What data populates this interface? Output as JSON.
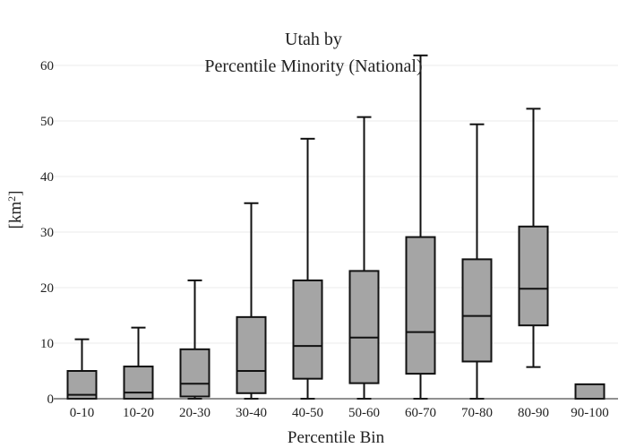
{
  "chart_data": {
    "type": "box",
    "title_lines": [
      "Utah  by",
      "Percentile Minority (National)"
    ],
    "xlabel": "Percentile Bin",
    "ylabel": "[km",
    "ylabel_sup": "2",
    "ylabel_close": "]",
    "ylim": [
      0,
      62
    ],
    "yticks": [
      0,
      10,
      20,
      30,
      40,
      50,
      60
    ],
    "grid": true,
    "categories": [
      "0-10",
      "10-20",
      "20-30",
      "30-40",
      "40-50",
      "50-60",
      "60-70",
      "70-80",
      "80-90",
      "90-100"
    ],
    "boxes": [
      {
        "min": 0,
        "q1": 0,
        "median": 0.7,
        "q3": 5.0,
        "max": 10.7
      },
      {
        "min": 0,
        "q1": 0,
        "median": 1.1,
        "q3": 5.8,
        "max": 12.8
      },
      {
        "min": 0,
        "q1": 0.4,
        "median": 2.7,
        "q3": 8.9,
        "max": 21.3
      },
      {
        "min": 0,
        "q1": 1.0,
        "median": 5.0,
        "q3": 14.7,
        "max": 35.2
      },
      {
        "min": 0,
        "q1": 3.6,
        "median": 9.5,
        "q3": 21.3,
        "max": 46.8
      },
      {
        "min": 0,
        "q1": 2.8,
        "median": 11.0,
        "q3": 23.0,
        "max": 50.7
      },
      {
        "min": 0,
        "q1": 4.5,
        "median": 12.0,
        "q3": 29.1,
        "max": 61.8
      },
      {
        "min": 0,
        "q1": 6.7,
        "median": 14.9,
        "q3": 25.1,
        "max": 49.4
      },
      {
        "min": 5.7,
        "q1": 13.2,
        "median": 19.8,
        "q3": 31.0,
        "max": 52.2
      },
      {
        "min": 0,
        "q1": 0,
        "median": 0,
        "q3": 2.6,
        "max": 2.6
      }
    ]
  }
}
